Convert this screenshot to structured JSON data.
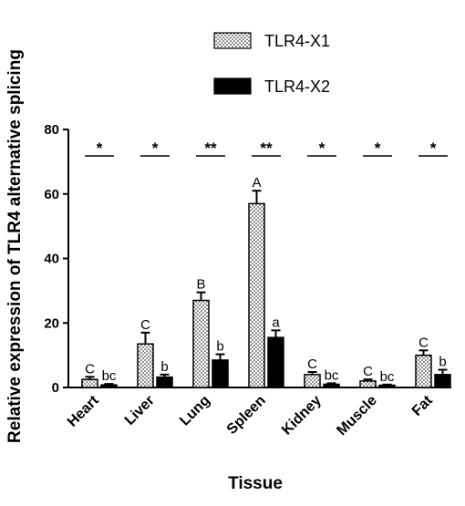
{
  "chart_data": {
    "type": "bar",
    "xlabel": "Tissue",
    "ylabel": "Relative expression of TLR4 alternative splicing",
    "ylim": [
      0,
      80
    ],
    "yticks": [
      "0",
      "20",
      "40",
      "60",
      "80"
    ],
    "categories": [
      "Heart",
      "Liver",
      "Lung",
      "Spleen",
      "Kidney",
      "Muscle",
      "Fat"
    ],
    "series": [
      {
        "name": "TLR4-X1",
        "pattern": "dotted",
        "color": "#ffffff",
        "values": [
          2.5,
          13.5,
          27,
          57,
          4,
          2,
          10
        ],
        "errors": [
          0.8,
          3.5,
          2.5,
          4,
          0.8,
          0.5,
          1.5
        ],
        "letters": [
          "C",
          "C",
          "B",
          "A",
          "C",
          "C",
          "C"
        ]
      },
      {
        "name": "TLR4-X2",
        "pattern": "solid",
        "color": "#000000",
        "values": [
          0.8,
          3.2,
          8.5,
          15.5,
          1,
          0.7,
          4
        ],
        "errors": [
          0.3,
          0.8,
          1.8,
          2.2,
          0.3,
          0.2,
          1.5
        ],
        "letters": [
          "bc",
          "b",
          "b",
          "a",
          "bc",
          "bc",
          "b"
        ]
      }
    ],
    "significance": [
      "*",
      "*",
      "**",
      "**",
      "*",
      "*",
      "*"
    ],
    "legend_position": "top"
  }
}
